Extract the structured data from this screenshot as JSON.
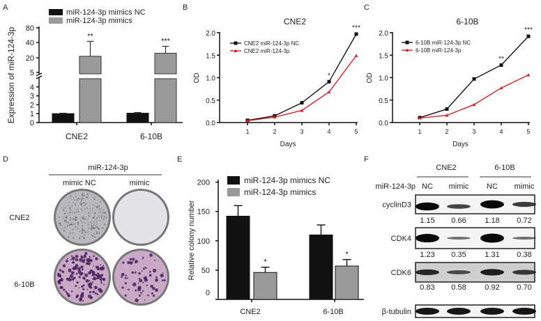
{
  "panel_labels": [
    "A",
    "B",
    "C",
    "D",
    "E",
    "F"
  ],
  "colors": {
    "nc_bar": "#111111",
    "mimic_bar": "#9a9a9a",
    "nc_line": "#111111",
    "mimic_line": "#d0222b",
    "plate_cne2": "#b9b9bd",
    "plate_610b": "#c8a9c6",
    "colony": "#4a1e5c"
  },
  "chart_data": [
    {
      "panel": "A",
      "type": "bar",
      "ylabel": "Expression of miR-124-3p",
      "categories": [
        "CNE2",
        "6-10B"
      ],
      "yticks_lower": [
        0,
        1,
        2,
        3,
        4
      ],
      "yticks_upper": [
        5,
        20,
        40,
        80
      ],
      "broken_axis": true,
      "series": [
        {
          "name": "miR-124-3p mimics NC",
          "values": [
            1.0,
            1.05
          ],
          "error": [
            0.05,
            0.08
          ]
        },
        {
          "name": "miR-124-3p mimics",
          "values": [
            22,
            26
          ],
          "error": [
            21,
            9
          ]
        }
      ],
      "significance": [
        "**",
        "***"
      ],
      "legend": "top-left"
    },
    {
      "panel": "B",
      "type": "line",
      "title": "CNE2",
      "xlabel": "Days",
      "ylabel": "OD",
      "x": [
        1,
        2,
        3,
        4,
        5
      ],
      "xlim": [
        0,
        5
      ],
      "ylim": [
        0,
        2.0
      ],
      "yticks": [
        "0.0",
        "0.5",
        "1.0",
        "1.5",
        "2.0"
      ],
      "series": [
        {
          "name": "CNE2 miR-124-3p NC",
          "values": [
            0.05,
            0.15,
            0.44,
            0.91,
            1.97
          ]
        },
        {
          "name": "CNE2 miR-124-3p",
          "values": [
            0.04,
            0.12,
            0.27,
            0.68,
            1.49
          ]
        }
      ],
      "significance": [
        "",
        "",
        "",
        "*",
        "***"
      ],
      "legend": "top-left"
    },
    {
      "panel": "C",
      "type": "line",
      "title": "6-10B",
      "xlabel": "Days",
      "ylabel": "OD",
      "x": [
        1,
        2,
        3,
        4,
        5
      ],
      "xlim": [
        0,
        5
      ],
      "ylim": [
        0,
        2.0
      ],
      "yticks": [
        "0.0",
        "0.5",
        "1.0",
        "1.5",
        "2.0"
      ],
      "series": [
        {
          "name": "6-10B miR-124-3p NC",
          "values": [
            0.11,
            0.3,
            0.97,
            1.28,
            1.92
          ]
        },
        {
          "name": "6-10B miR-124-3p",
          "values": [
            0.1,
            0.16,
            0.4,
            0.77,
            1.06
          ]
        }
      ],
      "significance": [
        "",
        "",
        "",
        "**",
        "***"
      ],
      "legend": "top-left"
    },
    {
      "panel": "E",
      "type": "bar",
      "ylabel": "Relative colony number",
      "categories": [
        "CNE2",
        "6-10B"
      ],
      "ylim": [
        0,
        200
      ],
      "yticks": [
        0,
        50,
        100,
        150,
        200
      ],
      "series": [
        {
          "name": "miR-124-3p mimics NC",
          "values": [
            142,
            110
          ],
          "error": [
            18,
            17
          ]
        },
        {
          "name": "miR-124-3p mimics",
          "values": [
            46,
            57
          ],
          "error": [
            9,
            11
          ]
        }
      ],
      "significance": [
        "*",
        "*"
      ],
      "legend": "top-left"
    }
  ],
  "panel_d": {
    "header": "miR-124-3p",
    "columns": [
      "mimic NC",
      "mimic"
    ],
    "rows": [
      "CNE2",
      "6-10B"
    ]
  },
  "panel_f": {
    "groups": [
      "CNE2",
      "6-10B"
    ],
    "row_label": "miR-124-3p",
    "lanes": [
      "NC",
      "mimic",
      "NC",
      "mimic"
    ],
    "blots": [
      {
        "protein": "cyclinD3",
        "values": [
          "1.15",
          "0.66",
          "1.18",
          "0.72"
        ]
      },
      {
        "protein": "CDK4",
        "values": [
          "1.23",
          "0.35",
          "1.31",
          "0.38"
        ]
      },
      {
        "protein": "CDK6",
        "values": [
          "0.83",
          "0.58",
          "0.92",
          "0.70"
        ]
      },
      {
        "protein": "β-tubulin",
        "values": []
      }
    ]
  }
}
